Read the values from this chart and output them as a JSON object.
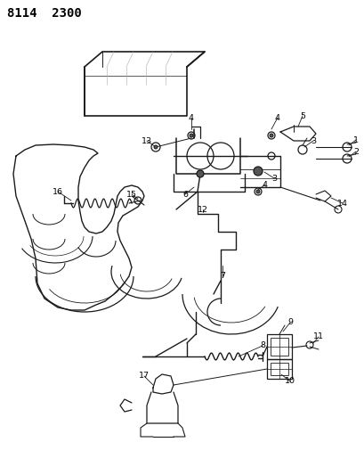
{
  "title": "8114  2300",
  "bg_color": "#ffffff",
  "line_color": "#1a1a1a",
  "text_color": "#000000",
  "title_fontsize": 10,
  "fig_width": 4.1,
  "fig_height": 5.33,
  "dpi": 100,
  "gray": "#888888",
  "darkgray": "#555555",
  "lightgray": "#cccccc"
}
